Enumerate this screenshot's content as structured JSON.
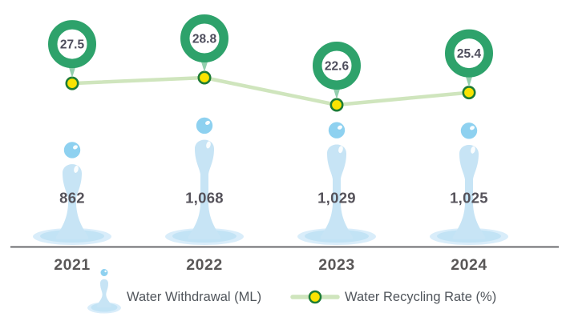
{
  "chart_data": {
    "type": "combo",
    "subtype": "pictograph-bar-with-line",
    "categories": [
      "2021",
      "2022",
      "2023",
      "2024"
    ],
    "series": [
      {
        "name": "Water Withdrawal (ML)",
        "type": "bar",
        "marker": "water-droplet-pictograph",
        "values": [
          862,
          1068,
          1029,
          1025
        ],
        "labels": [
          "862",
          "1,068",
          "1,029",
          "1,025"
        ]
      },
      {
        "name": "Water Recycling Rate (%)",
        "type": "line",
        "marker": "yellow-dot-in-green-donut-badge",
        "values": [
          27.5,
          28.8,
          22.6,
          25.4
        ],
        "labels": [
          "27.5",
          "28.8",
          "22.6",
          "25.4"
        ]
      }
    ],
    "title": "",
    "xlabel": "",
    "ylabel": "",
    "grid": false,
    "legend_position": "bottom",
    "colors": {
      "droplet_body": "#c7e4f5",
      "droplet_ball": "#8ed1f0",
      "splash_outer": "#d9edfa",
      "splash_inner": "#c2e3f5",
      "ring_green": "#2ea26b",
      "badge_tail": "#93cfae",
      "marker_fill": "#f9e302",
      "marker_stroke": "#1e7c35",
      "line_green": "#cfe5bd",
      "text": "#595757",
      "axis": "#56575b"
    }
  }
}
